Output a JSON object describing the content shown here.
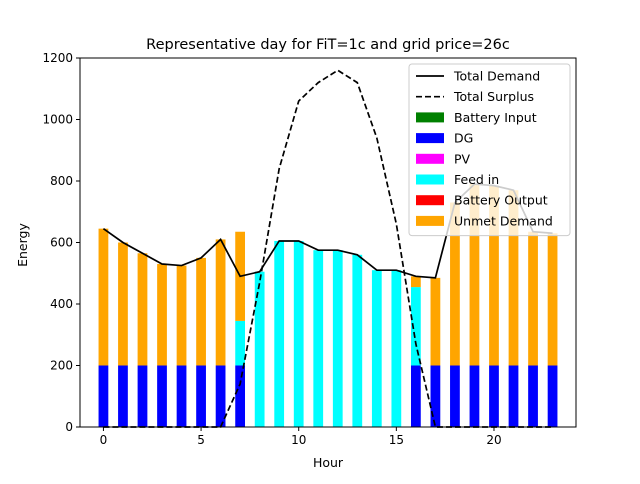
{
  "chart_data": {
    "type": "bar",
    "title": "Representative day for FiT=1c and grid price=26c",
    "xlabel": "Hour",
    "ylabel": "Energy",
    "xlim": [
      -1.2,
      24.2
    ],
    "ylim": [
      0,
      1200
    ],
    "xticks": [
      0,
      5,
      10,
      15,
      20
    ],
    "yticks": [
      0,
      200,
      400,
      600,
      800,
      1000,
      1200
    ],
    "legend_position": "top-right",
    "x": [
      0,
      1,
      2,
      3,
      4,
      5,
      6,
      7,
      8,
      9,
      10,
      11,
      12,
      13,
      14,
      15,
      16,
      17,
      18,
      19,
      20,
      21,
      22,
      23
    ],
    "stacked_series": [
      {
        "name": "Battery Input",
        "color": "#008000",
        "values": [
          0,
          0,
          0,
          0,
          0,
          0,
          0,
          0,
          0,
          0,
          0,
          0,
          0,
          0,
          0,
          0,
          0,
          0,
          0,
          0,
          0,
          0,
          0,
          0
        ]
      },
      {
        "name": "DG",
        "color": "#0000ff",
        "values": [
          200,
          200,
          200,
          200,
          200,
          200,
          200,
          200,
          0,
          0,
          0,
          0,
          0,
          0,
          0,
          0,
          200,
          200,
          200,
          200,
          200,
          200,
          200,
          200
        ]
      },
      {
        "name": "PV",
        "color": "#ff00ff",
        "values": [
          0,
          0,
          0,
          0,
          0,
          0,
          0,
          0,
          0,
          0,
          0,
          0,
          0,
          0,
          0,
          0,
          0,
          0,
          0,
          0,
          0,
          0,
          0,
          0
        ]
      },
      {
        "name": "Feed in",
        "color": "#00ffff",
        "values": [
          0,
          0,
          0,
          0,
          0,
          0,
          0,
          145,
          505,
          605,
          605,
          575,
          575,
          560,
          510,
          510,
          255,
          0,
          0,
          0,
          0,
          0,
          0,
          0
        ]
      },
      {
        "name": "Battery Output",
        "color": "#ff0000",
        "values": [
          0,
          0,
          0,
          0,
          0,
          0,
          0,
          0,
          0,
          0,
          0,
          0,
          0,
          0,
          0,
          0,
          0,
          0,
          0,
          0,
          0,
          0,
          0,
          0
        ]
      },
      {
        "name": "Unmet Demand",
        "color": "#ffa500",
        "values": [
          445,
          400,
          365,
          330,
          325,
          350,
          410,
          290,
          0,
          0,
          0,
          0,
          0,
          0,
          0,
          0,
          35,
          285,
          530,
          590,
          585,
          570,
          435,
          430
        ]
      }
    ],
    "line_series": [
      {
        "name": "Total Demand",
        "color": "#000000",
        "style": "solid",
        "values": [
          645,
          600,
          565,
          530,
          525,
          550,
          610,
          490,
          505,
          605,
          605,
          575,
          575,
          560,
          510,
          510,
          490,
          485,
          730,
          790,
          785,
          770,
          635,
          630
        ]
      },
      {
        "name": "Total Surplus",
        "color": "#000000",
        "style": "dashed",
        "values": [
          0,
          0,
          0,
          0,
          0,
          0,
          0,
          140,
          470,
          840,
          1060,
          1120,
          1160,
          1120,
          940,
          660,
          270,
          0,
          0,
          0,
          0,
          0,
          0,
          0
        ]
      }
    ],
    "legend_order": [
      "Total Demand",
      "Total Surplus",
      "Battery Input",
      "DG",
      "PV",
      "Feed in",
      "Battery Output",
      "Unmet Demand"
    ]
  }
}
